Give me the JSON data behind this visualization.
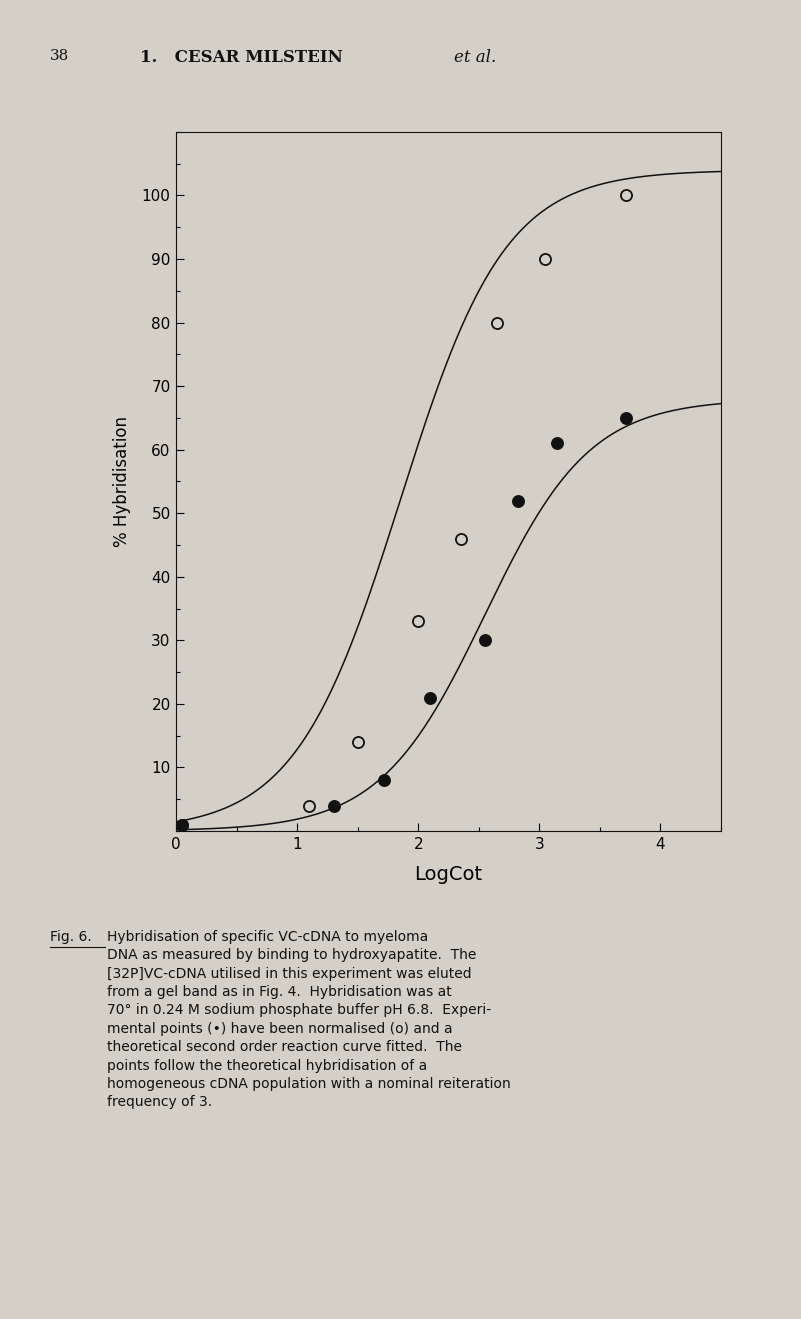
{
  "page_number": "38",
  "header_normal": "1.   CESAR MILSTEIN ",
  "header_italic": "et al.",
  "xlabel": "LogCot",
  "ylabel": "% Hybridisation",
  "xlim": [
    0,
    4.5
  ],
  "ylim": [
    0,
    110
  ],
  "yticks": [
    10,
    20,
    30,
    40,
    50,
    60,
    70,
    80,
    90,
    100
  ],
  "xticks": [
    0,
    1,
    2,
    3,
    4
  ],
  "background_color": "#d4d0c8",
  "open_x": [
    0.05,
    1.1,
    1.5,
    2.0,
    2.35,
    2.65,
    3.05,
    3.72
  ],
  "open_y": [
    1.0,
    4.0,
    14.0,
    33.0,
    46.0,
    80.0,
    90.0,
    100.0
  ],
  "filled_x": [
    0.05,
    1.3,
    1.72,
    2.1,
    2.55,
    2.82,
    3.15,
    3.72
  ],
  "filled_y": [
    1.0,
    4.0,
    8.0,
    21.0,
    30.0,
    52.0,
    61.0,
    65.0
  ],
  "curve1_logcot50": 1.85,
  "curve2_logcot50": 2.55,
  "curve_ymax1": 104,
  "curve_ymax2": 68,
  "marker_size": 8,
  "line_color": "#111111",
  "caption_fig_label": "Fig. 6.",
  "caption_body": "  Hybridisation of specific VC-cDNA to myeloma\nDNA as measured by binding to hydroxyapatite.  The\n[32P]VC-cDNA utilised in this experiment was eluted\nfrom a gel band as in Fig. 4.  Hybridisation was at\n70° in 0.24 M sodium phosphate buffer pH 6.8.  Experi-\nmental points (•) have been normalised (o) and a\ntheoretical second order reaction curve fitted.  The\npoints follow the theoretical hybridisation of a\nhomogeneous cDNA population with a nominal reiteration\nfrequency of 3."
}
